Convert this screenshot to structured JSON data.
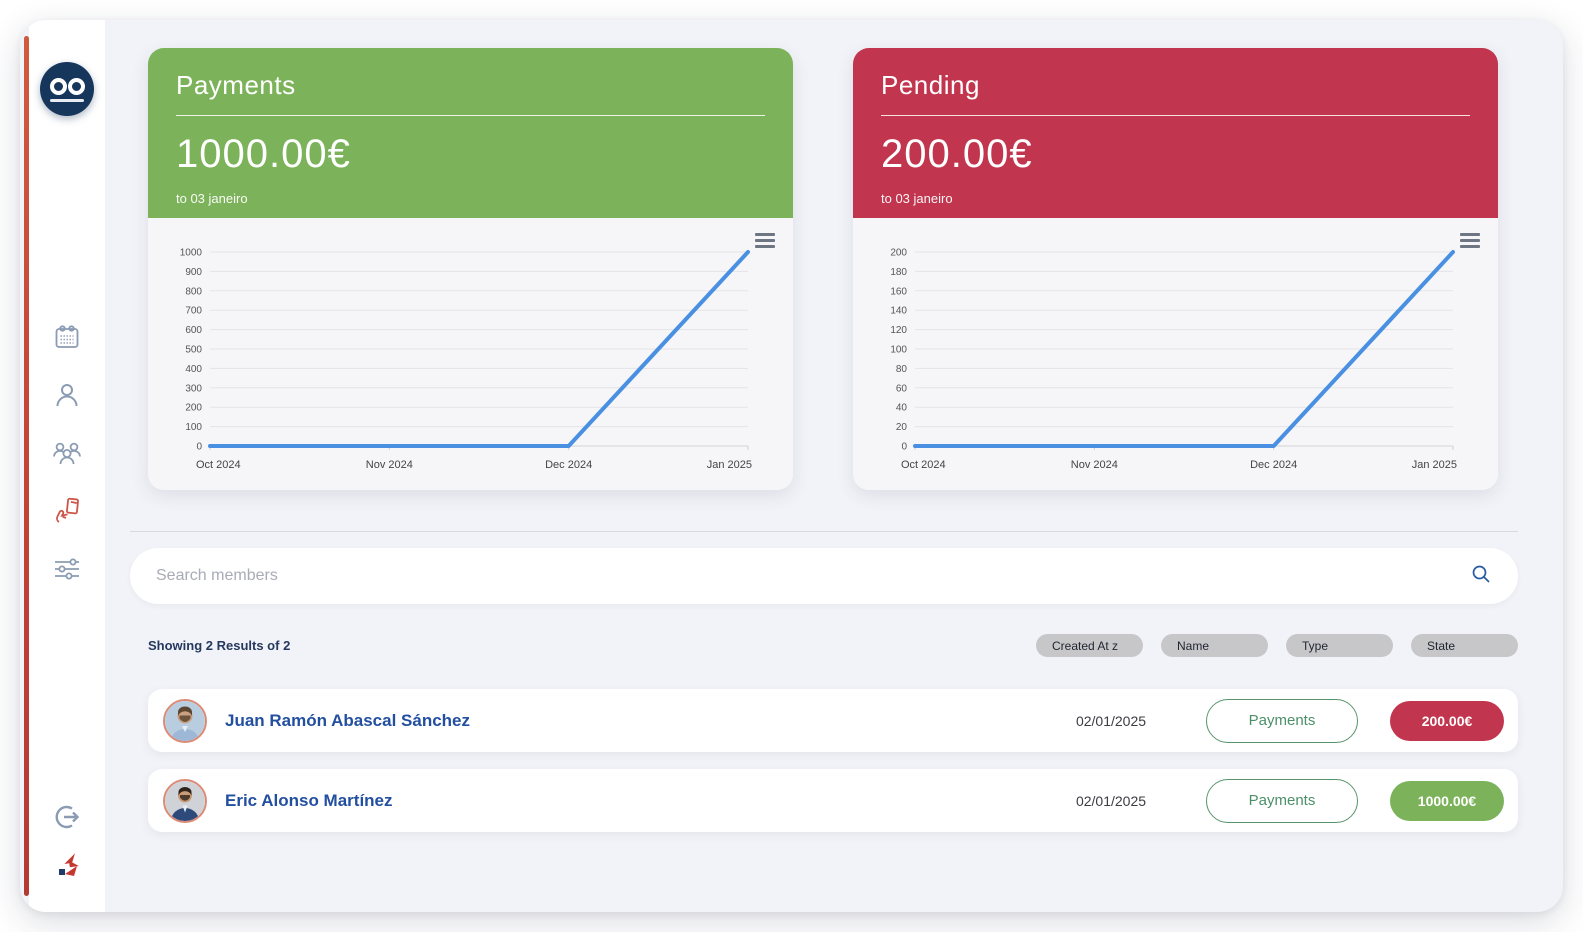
{
  "theme": {
    "green": "#7cb35a",
    "red": "#c2354e",
    "line_blue": "#4a90e2",
    "navy": "#17365c",
    "name_blue": "#224f9f"
  },
  "cards": [
    {
      "title": "Payments",
      "amount": "1000.00€",
      "subtitle": "to 03 janeiro",
      "header_color": "#7cb35a"
    },
    {
      "title": "Pending",
      "amount": "200.00€",
      "subtitle": "to 03 janeiro",
      "header_color": "#c2354e"
    }
  ],
  "chart_data": [
    {
      "type": "line",
      "title": "Payments",
      "x": [
        "Oct 2024",
        "Nov 2024",
        "Dec 2024",
        "Jan 2025"
      ],
      "series": [
        {
          "name": "Payments",
          "values": [
            0,
            0,
            0,
            1000
          ]
        }
      ],
      "yticks": [
        0,
        100,
        200,
        300,
        400,
        500,
        600,
        700,
        800,
        900,
        1000
      ],
      "ylim": [
        0,
        1000
      ],
      "grid": true,
      "legend": "none",
      "line_color": "#4a90e2"
    },
    {
      "type": "line",
      "title": "Pending",
      "x": [
        "Oct 2024",
        "Nov 2024",
        "Dec 2024",
        "Jan 2025"
      ],
      "series": [
        {
          "name": "Pending",
          "values": [
            0,
            0,
            0,
            200
          ]
        }
      ],
      "yticks": [
        0,
        20,
        40,
        60,
        80,
        100,
        120,
        140,
        160,
        180,
        200
      ],
      "ylim": [
        0,
        200
      ],
      "grid": true,
      "legend": "none",
      "line_color": "#4a90e2"
    }
  ],
  "search": {
    "placeholder": "Search members"
  },
  "results": {
    "summary": "Showing 2 Results of 2"
  },
  "filters": [
    "Created At z",
    "Name",
    "Type",
    "State"
  ],
  "members": [
    {
      "name": "Juan Ramón Abascal Sánchez",
      "date": "02/01/2025",
      "type_label": "Payments",
      "amount": "200.00€",
      "amount_color": "#c2354e"
    },
    {
      "name": "Eric Alonso Martínez",
      "date": "02/01/2025",
      "type_label": "Payments",
      "amount": "1000.00€",
      "amount_color": "#7cb35a"
    }
  ]
}
